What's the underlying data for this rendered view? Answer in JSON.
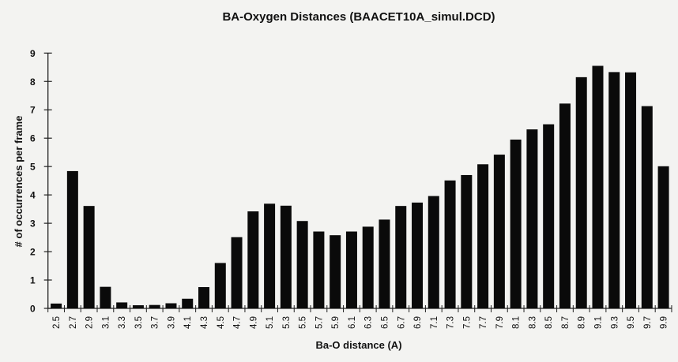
{
  "chart_data": {
    "type": "bar",
    "title": "BA-Oxygen Distances (BAACET10A_simul.DCD)",
    "xlabel": "Ba-O distance (A)",
    "ylabel": "# of occurrences per frame",
    "ylim": [
      0,
      9
    ],
    "yticks": [
      "0",
      "1",
      "2",
      "3",
      "4",
      "5",
      "6",
      "7",
      "8",
      "9"
    ],
    "grid": false,
    "categories": [
      "2.5",
      "2.7",
      "2.9",
      "3.1",
      "3.3",
      "3.5",
      "3.7",
      "3.9",
      "4.1",
      "4.3",
      "4.5",
      "4.7",
      "4.9",
      "5.1",
      "5.3",
      "5.5",
      "5.7",
      "5.9",
      "6.1",
      "6.3",
      "6.5",
      "6.7",
      "6.9",
      "7.1",
      "7.3",
      "7.5",
      "7.7",
      "7.9",
      "8.1",
      "8.3",
      "8.5",
      "8.7",
      "8.9",
      "9.1",
      "9.3",
      "9.5",
      "9.7",
      "9.9"
    ],
    "values": [
      0.17,
      4.84,
      3.61,
      0.76,
      0.21,
      0.11,
      0.12,
      0.18,
      0.34,
      0.75,
      1.6,
      2.51,
      3.42,
      3.69,
      3.62,
      3.08,
      2.71,
      2.58,
      2.71,
      2.88,
      3.13,
      3.61,
      3.73,
      3.96,
      4.51,
      4.7,
      5.08,
      5.42,
      5.95,
      6.31,
      6.49,
      7.22,
      8.15,
      8.55,
      8.33,
      8.32,
      7.13,
      5.01
    ],
    "bar_color": "#0a0a0a"
  }
}
